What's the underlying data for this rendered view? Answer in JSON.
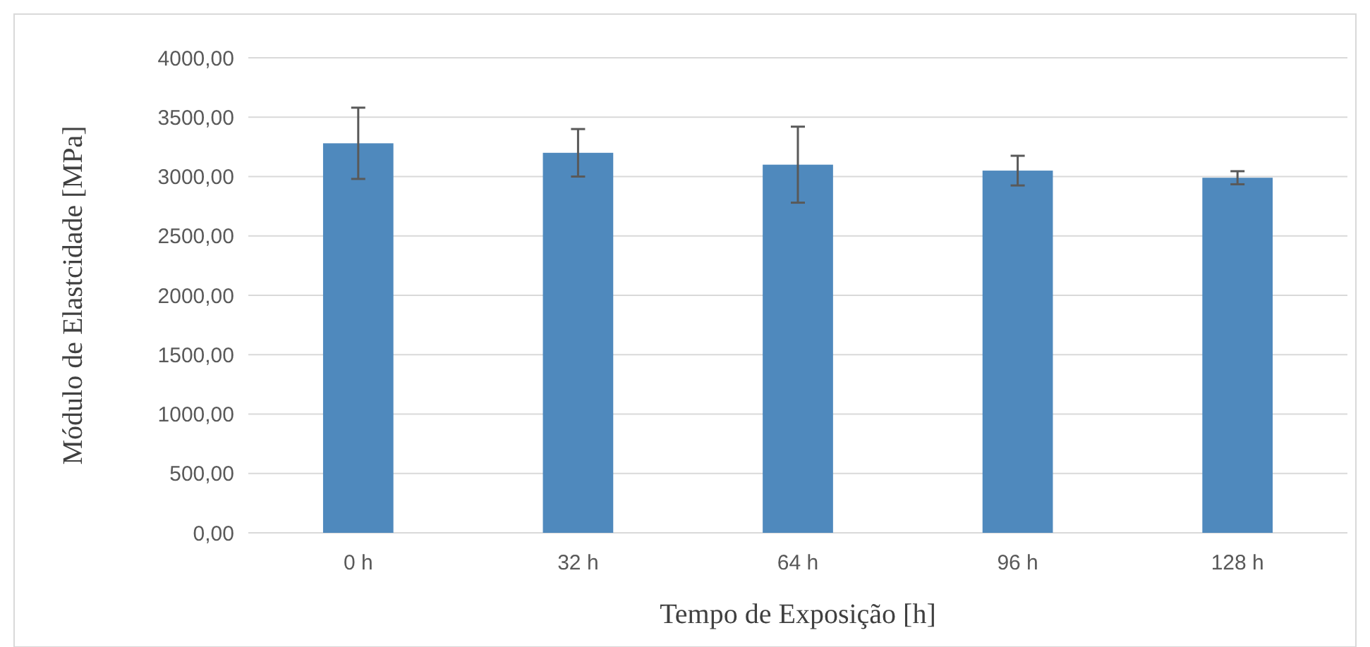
{
  "chart_data": {
    "type": "bar",
    "xlabel": "Tempo de Exposição [h]",
    "ylabel": "Módulo de Elastcidade [MPa]",
    "categories": [
      "0 h",
      "32 h",
      "64 h",
      "96 h",
      "128 h"
    ],
    "values": [
      3280,
      3200,
      3100,
      3050,
      2990
    ],
    "errors": [
      300,
      200,
      320,
      125,
      55
    ],
    "color": "#4f89bd",
    "ylim": [
      0,
      4000
    ],
    "yticks": [
      {
        "value": 0,
        "label": "0,00"
      },
      {
        "value": 500,
        "label": "500,00"
      },
      {
        "value": 1000,
        "label": "1000,00"
      },
      {
        "value": 1500,
        "label": "1500,00"
      },
      {
        "value": 2000,
        "label": "2000,00"
      },
      {
        "value": 2500,
        "label": "2500,00"
      },
      {
        "value": 3000,
        "label": "3000,00"
      },
      {
        "value": 3500,
        "label": "3500,00"
      },
      {
        "value": 4000,
        "label": "4000,00"
      }
    ],
    "grid": "y"
  }
}
